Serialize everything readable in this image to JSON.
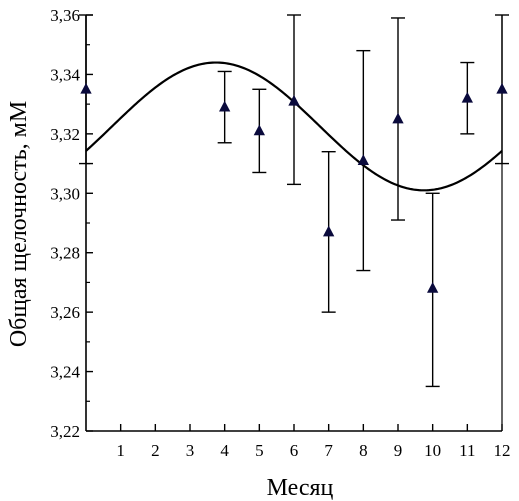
{
  "chart_data": {
    "type": "scatter",
    "title": "",
    "xlabel": "Месяц",
    "ylabel": "Общая щелочность, мМ",
    "xlim": [
      0,
      12
    ],
    "ylim": [
      3.22,
      3.36
    ],
    "x_ticks": [
      1,
      2,
      3,
      4,
      5,
      6,
      7,
      8,
      9,
      10,
      11,
      12
    ],
    "x_tick_labels": [
      "1",
      "2",
      "3",
      "4",
      "5",
      "6",
      "7",
      "8",
      "9",
      "10",
      "11",
      "12"
    ],
    "y_ticks": [
      3.22,
      3.24,
      3.26,
      3.28,
      3.3,
      3.32,
      3.34,
      3.36
    ],
    "y_tick_labels": [
      "3,22",
      "3,24",
      "3,26",
      "3,28",
      "3,30",
      "3,32",
      "3,34",
      "3,36"
    ],
    "grid": false,
    "legend": "none",
    "series": [
      {
        "marker": "triangle",
        "color": "#0a0a3c",
        "points": [
          {
            "x": 0,
            "y": 3.335,
            "err_low": 0.025,
            "err_high": 0.025
          },
          {
            "x": 4,
            "y": 3.329,
            "err_low": 0.012,
            "err_high": 0.012
          },
          {
            "x": 5,
            "y": 3.321,
            "err_low": 0.014,
            "err_high": 0.014
          },
          {
            "x": 6,
            "y": 3.331,
            "err_low": 0.028,
            "err_high": 0.029
          },
          {
            "x": 7,
            "y": 3.287,
            "err_low": 0.027,
            "err_high": 0.027
          },
          {
            "x": 8,
            "y": 3.311,
            "err_low": 0.037,
            "err_high": 0.037
          },
          {
            "x": 9,
            "y": 3.325,
            "err_low": 0.034,
            "err_high": 0.034
          },
          {
            "x": 10,
            "y": 3.268,
            "err_low": 0.033,
            "err_high": 0.032
          },
          {
            "x": 11,
            "y": 3.332,
            "err_low": 0.012,
            "err_high": 0.012
          },
          {
            "x": 12,
            "y": 3.335,
            "err_low": 0.025,
            "err_high": 0.025
          }
        ]
      }
    ],
    "fit_curve": {
      "type": "line",
      "color": "#000000",
      "equation": "y = 3.3225 + 0.0215*sin(2*pi*(x - 12.75)/12)"
    }
  }
}
